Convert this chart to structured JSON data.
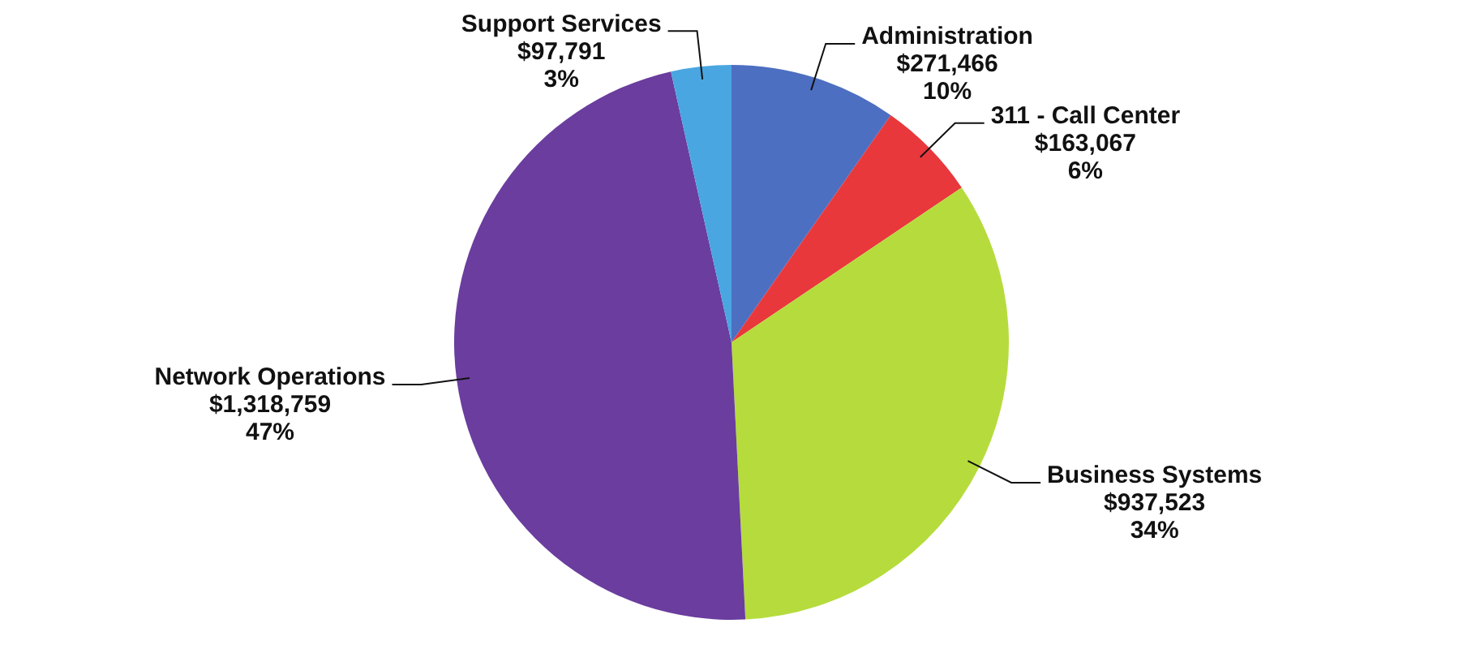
{
  "chart_data": {
    "type": "pie",
    "categories": [
      "Administration",
      "311 - Call Center",
      "Business Systems",
      "Network Operations",
      "Support Services"
    ],
    "values": [
      271466,
      163067,
      937523,
      1318759,
      97791
    ],
    "value_labels": [
      "$271,466\n10%",
      "$163,067\n6%",
      "$937,523\n34%",
      "$1,318,759\n47%",
      "$97,791\n3%"
    ],
    "colors": [
      "#4d6fc2",
      "#e8383c",
      "#b5dc3c",
      "#6a3d9e",
      "#4aa6e0"
    ],
    "legend": false
  }
}
